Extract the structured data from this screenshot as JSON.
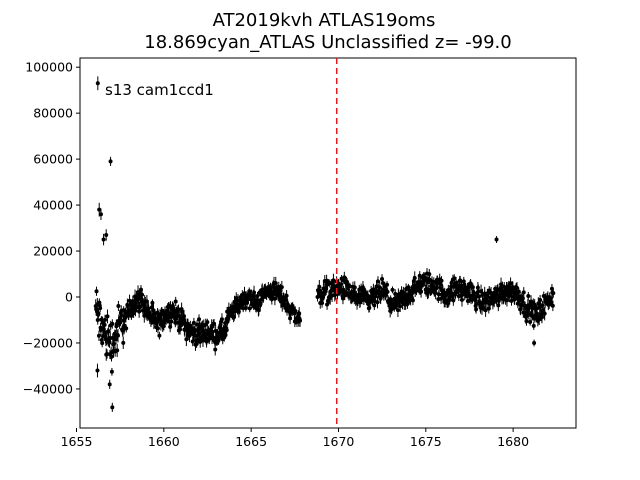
{
  "chart_data": {
    "type": "scatter",
    "title_line1": "AT2019kvh  ATLAS19oms",
    "title_line2": "18.869cyan_ATLAS Unclassified z= -99.0",
    "xlabel": "",
    "ylabel": "",
    "xlim": [
      1655.2,
      1683.6
    ],
    "ylim": [
      -57000,
      104000
    ],
    "x_ticks": [
      1655,
      1660,
      1665,
      1670,
      1675,
      1680
    ],
    "y_ticks": [
      -40000,
      -20000,
      0,
      20000,
      40000,
      60000,
      80000,
      100000
    ],
    "x_tick_labels": [
      "1655",
      "1660",
      "1665",
      "1670",
      "1675",
      "1680"
    ],
    "y_tick_labels": [
      "−40000",
      "−20000",
      "0",
      "20000",
      "40000",
      "60000",
      "80000",
      "100000"
    ],
    "annotation": "s13 cam1ccd1",
    "vline": {
      "x": 1669.9,
      "color": "#e41a1c",
      "style": "dashed"
    },
    "marker_color": "#000000",
    "grid": false,
    "isolated_points": [
      {
        "x": 1656.22,
        "y": 93000,
        "err": 3000
      },
      {
        "x": 1656.95,
        "y": 59000,
        "err": 2000
      },
      {
        "x": 1656.3,
        "y": 38000,
        "err": 3000
      },
      {
        "x": 1656.4,
        "y": 36000,
        "err": 2500
      },
      {
        "x": 1656.7,
        "y": 27000,
        "err": 2500
      },
      {
        "x": 1656.55,
        "y": 25000,
        "err": 2500
      },
      {
        "x": 1656.2,
        "y": -32000,
        "err": 3000
      },
      {
        "x": 1656.9,
        "y": -38000,
        "err": 2000
      },
      {
        "x": 1657.05,
        "y": -48000,
        "err": 2000
      },
      {
        "x": 1679.05,
        "y": 25000,
        "err": 1500
      },
      {
        "x": 1681.2,
        "y": -20000,
        "err": 1500
      }
    ],
    "segments": [
      {
        "x_start": 1656.1,
        "x_end": 1657.7,
        "knots": [
          [
            1656.1,
            -5000
          ],
          [
            1656.5,
            -15000
          ],
          [
            1657.0,
            -20000
          ],
          [
            1657.4,
            -15000
          ],
          [
            1657.7,
            -8000
          ]
        ],
        "scatter": 14000,
        "n": 70
      },
      {
        "x_start": 1657.7,
        "x_end": 1660.0,
        "knots": [
          [
            1657.7,
            -12000
          ],
          [
            1658.2,
            -3000
          ],
          [
            1658.7,
            -1000
          ],
          [
            1659.2,
            -8000
          ],
          [
            1659.7,
            -12000
          ],
          [
            1660.0,
            -9000
          ]
        ],
        "scatter": 6000,
        "n": 110
      },
      {
        "x_start": 1660.0,
        "x_end": 1663.6,
        "knots": [
          [
            1660.0,
            -8000
          ],
          [
            1660.5,
            -6000
          ],
          [
            1661.0,
            -10000
          ],
          [
            1661.5,
            -15000
          ],
          [
            1662.0,
            -16000
          ],
          [
            1662.5,
            -15000
          ],
          [
            1663.0,
            -17000
          ],
          [
            1663.6,
            -14000
          ]
        ],
        "scatter": 6000,
        "n": 160
      },
      {
        "x_start": 1663.6,
        "x_end": 1667.8,
        "knots": [
          [
            1663.6,
            -10000
          ],
          [
            1664.2,
            -4000
          ],
          [
            1664.8,
            0
          ],
          [
            1665.3,
            -3000
          ],
          [
            1665.8,
            2000
          ],
          [
            1666.3,
            3000
          ],
          [
            1666.8,
            0
          ],
          [
            1667.3,
            -6000
          ],
          [
            1667.8,
            -10000
          ]
        ],
        "scatter": 5000,
        "n": 170
      },
      {
        "x_start": 1668.8,
        "x_end": 1682.3,
        "knots": [
          [
            1668.8,
            1000
          ],
          [
            1669.5,
            3000
          ],
          [
            1670.2,
            4000
          ],
          [
            1671.0,
            0
          ],
          [
            1671.8,
            -2000
          ],
          [
            1672.5,
            3000
          ],
          [
            1673.2,
            -4000
          ],
          [
            1674.0,
            1000
          ],
          [
            1674.8,
            6000
          ],
          [
            1675.5,
            5000
          ],
          [
            1676.2,
            1000
          ],
          [
            1676.8,
            4000
          ],
          [
            1677.5,
            2000
          ],
          [
            1678.2,
            -2000
          ],
          [
            1679.0,
            0
          ],
          [
            1679.6,
            3000
          ],
          [
            1680.2,
            2000
          ],
          [
            1680.8,
            -5000
          ],
          [
            1681.3,
            -8000
          ],
          [
            1681.8,
            -4000
          ],
          [
            1682.3,
            1000
          ]
        ],
        "scatter": 6000,
        "n": 520
      }
    ]
  }
}
